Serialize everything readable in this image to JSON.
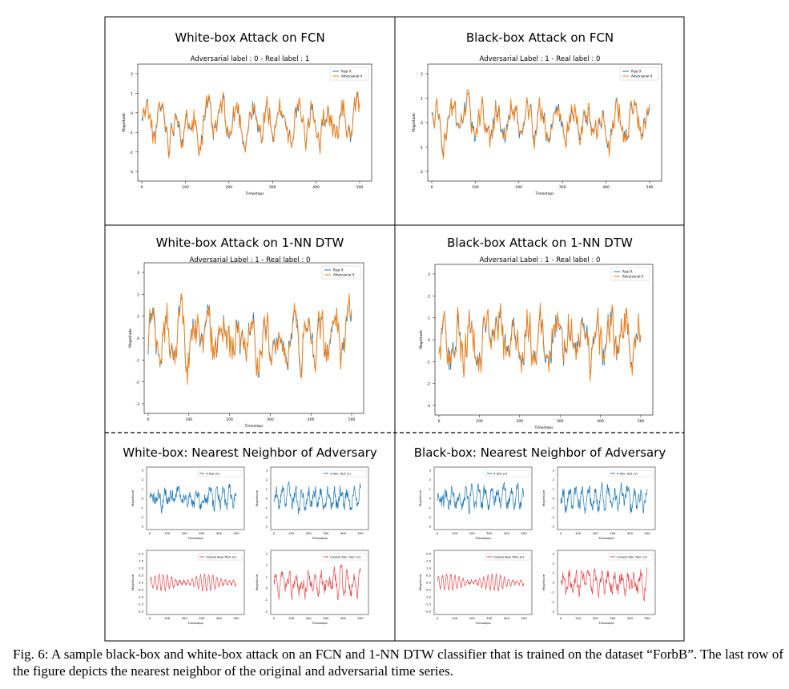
{
  "figure": {
    "panels": [
      {
        "id": "p1",
        "title": "White-box Attack on FCN",
        "subtitle": "Adversarial label : 0 - Real label : 1",
        "ylabel": "Magnitude",
        "xlabel": "Timesteps",
        "legend": [
          "Real X",
          "Adversarial X"
        ],
        "xticks": [
          "0",
          "100",
          "200",
          "300",
          "400",
          "500"
        ],
        "yticks": [
          "2",
          "1",
          "0",
          "-1",
          "-2",
          "-3"
        ]
      },
      {
        "id": "p2",
        "title": "Black-box Attack on FCN",
        "subtitle": "Adversarial Label : 1 - Real label : 0",
        "ylabel": "Magnitude",
        "xlabel": "Timesteps",
        "legend": [
          "Real X",
          "Adversarial X"
        ],
        "xticks": [
          "0",
          "100",
          "200",
          "300",
          "400",
          "500"
        ],
        "yticks": [
          "2",
          "1",
          "0",
          "-1",
          "-2"
        ]
      },
      {
        "id": "p3",
        "title": "White-box Attack on 1-NN DTW",
        "subtitle": "Adversarial Label : 1 - Real label : 0",
        "ylabel": "Magnitude",
        "xlabel": "Timesteps",
        "legend": [
          "Real X",
          "Adversarial X"
        ],
        "xticks": [
          "0",
          "100",
          "200",
          "300",
          "400",
          "500"
        ],
        "yticks": [
          "3",
          "2",
          "1",
          "0",
          "-1",
          "-2",
          "-3"
        ]
      },
      {
        "id": "p4",
        "title": "Black-box Attack on 1-NN DTW",
        "subtitle": "Adversarial Label : 1 - Real label : 0",
        "ylabel": "Magnitude",
        "xlabel": "Timesteps",
        "legend": [
          "Real X",
          "Adversarial X"
        ],
        "xticks": [
          "0",
          "100",
          "200",
          "300",
          "400",
          "500"
        ],
        "yticks": [
          "3",
          "2",
          "1",
          "0",
          "-1",
          "-2",
          "-3"
        ]
      }
    ],
    "nn_sections": [
      {
        "id": "wb",
        "title": "White-box: Nearest Neighbor of Adversary",
        "plots": [
          {
            "legend": "X Test (0)",
            "color": "#1f77b4",
            "yticks": [
              "3",
              "2",
              "1",
              "0",
              "-1",
              "-2",
              "-3"
            ]
          },
          {
            "legend": "X Adv. Test (1)",
            "color": "#1f77b4",
            "yticks": [
              "3",
              "2",
              "1",
              "0",
              "-1",
              "-2",
              "-3"
            ]
          },
          {
            "legend": "Closest Real Train (0)",
            "color": "#e8494b",
            "yticks": [
              "2.0",
              "1.5",
              "1.0",
              "0.5",
              "0.0",
              "-0.5",
              "-1.0",
              "-1.5",
              "-2.0"
            ]
          },
          {
            "legend": "Closest Adv. Train (1)",
            "color": "#e8494b",
            "yticks": [
              "3",
              "2",
              "1",
              "0",
              "-1",
              "-2"
            ]
          }
        ]
      },
      {
        "id": "bb",
        "title": "Black-box: Nearest Neighbor of Adversary",
        "plots": [
          {
            "legend": "X Test (0)",
            "color": "#1f77b4",
            "yticks": [
              "3",
              "2",
              "1",
              "0",
              "-1",
              "-2",
              "-3"
            ]
          },
          {
            "legend": "X Adv. Test (1)",
            "color": "#1f77b4",
            "yticks": [
              "3",
              "2",
              "1",
              "0",
              "-1",
              "-2",
              "-3"
            ]
          },
          {
            "legend": "Closest Real Train (0)",
            "color": "#e8494b",
            "yticks": [
              "2.0",
              "1.5",
              "1.0",
              "0.5",
              "0.0",
              "-0.5",
              "-1.0",
              "-1.5",
              "-2.0"
            ]
          },
          {
            "legend": "Closest Adv. Train (1)",
            "color": "#e8494b",
            "yticks": [
              "3",
              "2",
              "1",
              "0",
              "-1",
              "-2",
              "-3"
            ]
          }
        ]
      }
    ],
    "nn_xlabel": "Timesteps",
    "nn_ylabel": "Magnitude",
    "nn_xticks": [
      "0",
      "100",
      "200",
      "300",
      "400",
      "500"
    ],
    "colors": {
      "real": "#1f77b4",
      "adversarial": "#ff7f0e",
      "nn_red": "#e8494b"
    }
  },
  "caption": "Fig. 6: A sample black-box and white-box attack on an FCN and 1-NN DTW classifier that is trained on the dataset “ForbB”. The last row of the figure depicts the nearest neighbor of the original and adversarial time series."
}
